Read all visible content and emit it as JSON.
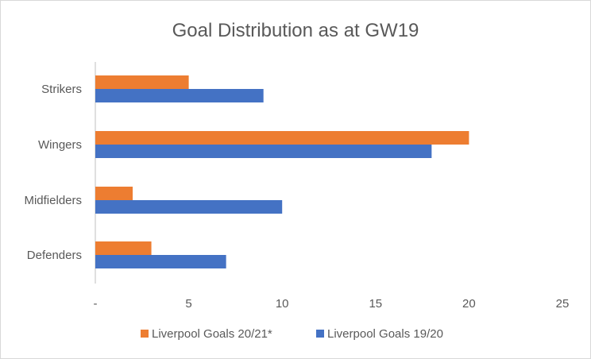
{
  "chart_data": {
    "type": "bar",
    "orientation": "horizontal",
    "title": "Goal Distribution as at GW19",
    "categories": [
      "Strikers",
      "Wingers",
      "Midfielders",
      "Defenders"
    ],
    "series": [
      {
        "name": "Liverpool Goals 20/21*",
        "color": "#ED7D31",
        "values": [
          5,
          20,
          2,
          3
        ]
      },
      {
        "name": "Liverpool Goals 19/20",
        "color": "#4472C4",
        "values": [
          9,
          18,
          10,
          7
        ]
      }
    ],
    "xlim": [
      0,
      25
    ],
    "x_ticks": [
      "-",
      "5",
      "10",
      "15",
      "20",
      "25"
    ],
    "xlabel": "",
    "ylabel": "",
    "grid": false,
    "legend_position": "bottom"
  }
}
